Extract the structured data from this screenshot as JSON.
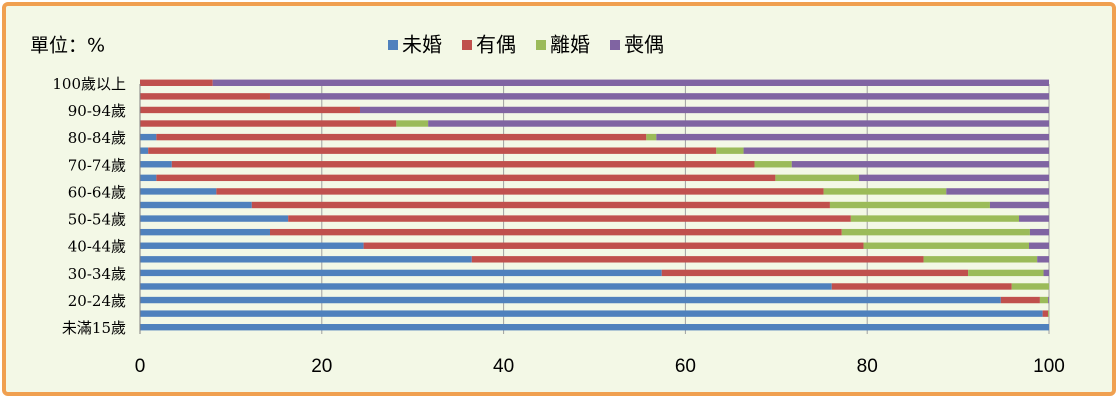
{
  "chart_data": {
    "type": "stacked-bar-horizontal",
    "unit": "單位：%",
    "categories": [
      "未滿15歲",
      null,
      "20-24歲",
      null,
      "30-34歲",
      null,
      "40-44歲",
      null,
      "50-54歲",
      null,
      "60-64歲",
      null,
      "70-74歲",
      null,
      "80-84歲",
      null,
      "90-94歲",
      null,
      "100歲以上"
    ],
    "series": [
      {
        "name": "未婚",
        "color": "#4f81bd",
        "values": [
          100,
          99.3,
          94.7,
          76.1,
          57.4,
          36.5,
          24.6,
          14.3,
          16.3,
          12.3,
          8.4,
          1.8,
          3.5,
          0.9,
          1.8,
          0,
          0,
          0,
          0
        ]
      },
      {
        "name": "有偶",
        "color": "#c0504d",
        "values": [
          0,
          0.6,
          4.3,
          19.8,
          33.7,
          49.7,
          55.0,
          62.9,
          61.9,
          63.6,
          66.8,
          68.1,
          64.1,
          62.5,
          53.9,
          28.2,
          24.2,
          14.3,
          8
        ]
      },
      {
        "name": "離婚",
        "color": "#9bbb59",
        "values": [
          0,
          0.1,
          0.9,
          4.1,
          8.3,
          12.5,
          18.2,
          20.7,
          18.5,
          17.6,
          13.5,
          9.2,
          4.1,
          3.0,
          1.1,
          3.5,
          0,
          0,
          0
        ]
      },
      {
        "name": "喪偶",
        "color": "#8064a2",
        "values": [
          0,
          0,
          0.1,
          0,
          0.6,
          1.3,
          2.2,
          2.1,
          3.3,
          6.5,
          11.3,
          20.9,
          28.3,
          33.6,
          43.2,
          68.3,
          75.8,
          85.7,
          92
        ]
      }
    ],
    "xlim": [
      0,
      100
    ],
    "xticks": [
      0,
      20,
      40,
      60,
      80,
      100
    ],
    "grid": true
  }
}
